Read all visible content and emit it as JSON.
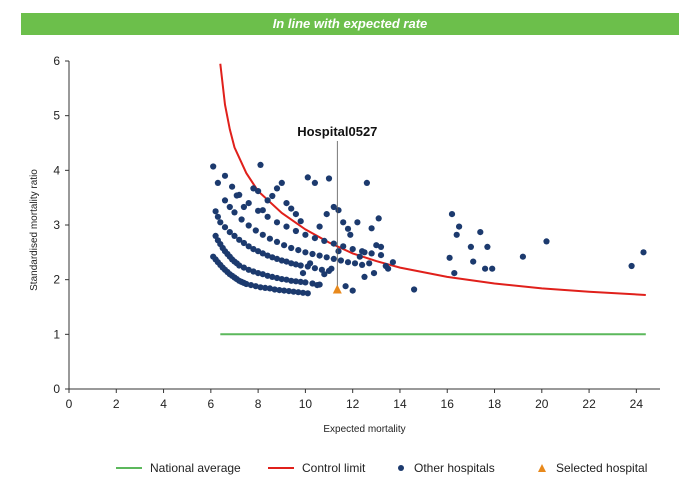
{
  "banner": {
    "text": "In line with expected rate"
  },
  "colors": {
    "banner": "#6cbf4b",
    "national": "#5cb85c",
    "control": "#e0201b",
    "hospitals": "#1c3a6e",
    "selected": "#e8891c"
  },
  "chart_data": {
    "type": "scatter",
    "xlabel": "Expected mortality",
    "ylabel": "Standardised mortality ratio",
    "xlim": [
      0,
      25
    ],
    "ylim": [
      0,
      6
    ],
    "xticks": [
      0,
      2,
      4,
      6,
      8,
      10,
      12,
      14,
      16,
      18,
      20,
      22,
      24
    ],
    "yticks": [
      0,
      1,
      2,
      3,
      4,
      5,
      6
    ],
    "grid": false,
    "legend_position": "bottom",
    "series": [
      {
        "name": "National average",
        "kind": "line",
        "points": [
          [
            6.4,
            1
          ],
          [
            24.4,
            1
          ]
        ]
      },
      {
        "name": "Control limit",
        "kind": "line",
        "points": [
          [
            6.4,
            5.95
          ],
          [
            6.6,
            5.2
          ],
          [
            6.8,
            4.75
          ],
          [
            7.0,
            4.42
          ],
          [
            7.5,
            3.95
          ],
          [
            8.0,
            3.62
          ],
          [
            9.0,
            3.22
          ],
          [
            10.0,
            2.92
          ],
          [
            11.0,
            2.68
          ],
          [
            12.0,
            2.48
          ],
          [
            13.0,
            2.34
          ],
          [
            14.0,
            2.22
          ],
          [
            16.0,
            2.05
          ],
          [
            18.0,
            1.93
          ],
          [
            20.0,
            1.84
          ],
          [
            22.0,
            1.78
          ],
          [
            24.4,
            1.72
          ]
        ]
      },
      {
        "name": "Other hospitals",
        "kind": "scatter",
        "points": [
          [
            6.1,
            2.42
          ],
          [
            6.2,
            2.37
          ],
          [
            6.3,
            2.32
          ],
          [
            6.4,
            2.27
          ],
          [
            6.5,
            2.22
          ],
          [
            6.6,
            2.18
          ],
          [
            6.7,
            2.14
          ],
          [
            6.8,
            2.1
          ],
          [
            6.9,
            2.07
          ],
          [
            7.0,
            2.04
          ],
          [
            7.1,
            2.01
          ],
          [
            7.2,
            1.98
          ],
          [
            7.3,
            1.96
          ],
          [
            7.4,
            1.94
          ],
          [
            7.5,
            1.92
          ],
          [
            7.7,
            1.9
          ],
          [
            7.9,
            1.88
          ],
          [
            8.1,
            1.86
          ],
          [
            8.3,
            1.85
          ],
          [
            8.5,
            1.84
          ],
          [
            8.7,
            1.82
          ],
          [
            8.9,
            1.81
          ],
          [
            9.1,
            1.8
          ],
          [
            9.3,
            1.79
          ],
          [
            9.5,
            1.78
          ],
          [
            9.7,
            1.77
          ],
          [
            9.9,
            1.76
          ],
          [
            10.1,
            1.75
          ],
          [
            6.2,
            2.8
          ],
          [
            6.3,
            2.72
          ],
          [
            6.4,
            2.65
          ],
          [
            6.5,
            2.58
          ],
          [
            6.6,
            2.52
          ],
          [
            6.7,
            2.47
          ],
          [
            6.8,
            2.42
          ],
          [
            6.9,
            2.37
          ],
          [
            7.0,
            2.33
          ],
          [
            7.1,
            2.3
          ],
          [
            7.2,
            2.26
          ],
          [
            7.4,
            2.22
          ],
          [
            7.6,
            2.18
          ],
          [
            7.8,
            2.15
          ],
          [
            8.0,
            2.12
          ],
          [
            8.2,
            2.1
          ],
          [
            8.4,
            2.07
          ],
          [
            8.6,
            2.05
          ],
          [
            8.8,
            2.03
          ],
          [
            9.0,
            2.01
          ],
          [
            9.2,
            2.0
          ],
          [
            9.4,
            1.98
          ],
          [
            9.6,
            1.97
          ],
          [
            9.8,
            1.96
          ],
          [
            10.0,
            1.95
          ],
          [
            10.3,
            1.93
          ],
          [
            10.6,
            1.91
          ],
          [
            6.2,
            3.25
          ],
          [
            6.3,
            3.15
          ],
          [
            6.4,
            3.05
          ],
          [
            6.6,
            2.96
          ],
          [
            6.8,
            2.87
          ],
          [
            7.0,
            2.8
          ],
          [
            7.2,
            2.73
          ],
          [
            7.4,
            2.67
          ],
          [
            7.6,
            2.61
          ],
          [
            7.8,
            2.56
          ],
          [
            8.0,
            2.52
          ],
          [
            8.2,
            2.48
          ],
          [
            8.4,
            2.44
          ],
          [
            8.6,
            2.41
          ],
          [
            8.8,
            2.38
          ],
          [
            9.0,
            2.35
          ],
          [
            9.2,
            2.33
          ],
          [
            9.4,
            2.3
          ],
          [
            9.6,
            2.28
          ],
          [
            9.8,
            2.26
          ],
          [
            10.1,
            2.24
          ],
          [
            10.4,
            2.21
          ],
          [
            10.7,
            2.18
          ],
          [
            11.0,
            2.16
          ],
          [
            6.6,
            3.45
          ],
          [
            6.8,
            3.33
          ],
          [
            7.0,
            3.23
          ],
          [
            7.3,
            3.1
          ],
          [
            7.6,
            2.99
          ],
          [
            7.9,
            2.9
          ],
          [
            8.2,
            2.82
          ],
          [
            8.5,
            2.75
          ],
          [
            8.8,
            2.69
          ],
          [
            9.1,
            2.63
          ],
          [
            9.4,
            2.58
          ],
          [
            9.7,
            2.54
          ],
          [
            10.0,
            2.5
          ],
          [
            10.3,
            2.47
          ],
          [
            10.6,
            2.44
          ],
          [
            10.9,
            2.41
          ],
          [
            11.2,
            2.38
          ],
          [
            11.5,
            2.35
          ],
          [
            11.8,
            2.32
          ],
          [
            12.1,
            2.3
          ],
          [
            12.4,
            2.27
          ],
          [
            7.2,
            3.55
          ],
          [
            7.6,
            3.4
          ],
          [
            8.0,
            3.26
          ],
          [
            8.4,
            3.15
          ],
          [
            8.8,
            3.05
          ],
          [
            9.2,
            2.97
          ],
          [
            9.6,
            2.89
          ],
          [
            10.0,
            2.82
          ],
          [
            10.4,
            2.76
          ],
          [
            10.8,
            2.71
          ],
          [
            11.2,
            2.66
          ],
          [
            11.6,
            2.61
          ],
          [
            12.0,
            2.56
          ],
          [
            12.4,
            2.52
          ],
          [
            12.8,
            2.48
          ],
          [
            6.1,
            4.07
          ],
          [
            6.3,
            3.77
          ],
          [
            6.6,
            3.9
          ],
          [
            6.9,
            3.7
          ],
          [
            7.1,
            3.54
          ],
          [
            7.4,
            3.33
          ],
          [
            7.8,
            3.67
          ],
          [
            8.0,
            3.62
          ],
          [
            8.1,
            4.1
          ],
          [
            8.2,
            3.27
          ],
          [
            8.4,
            3.45
          ],
          [
            8.6,
            3.53
          ],
          [
            8.8,
            3.67
          ],
          [
            9.0,
            3.77
          ],
          [
            9.2,
            3.4
          ],
          [
            9.4,
            3.3
          ],
          [
            9.6,
            3.2
          ],
          [
            9.8,
            3.07
          ],
          [
            10.1,
            3.87
          ],
          [
            10.4,
            3.77
          ],
          [
            10.6,
            2.97
          ],
          [
            10.9,
            3.2
          ],
          [
            11.0,
            3.85
          ],
          [
            11.2,
            3.33
          ],
          [
            11.4,
            3.27
          ],
          [
            11.6,
            3.05
          ],
          [
            11.8,
            2.93
          ],
          [
            11.9,
            2.82
          ],
          [
            12.2,
            3.05
          ],
          [
            12.5,
            2.5
          ],
          [
            12.6,
            3.77
          ],
          [
            12.8,
            2.94
          ],
          [
            13.0,
            2.63
          ],
          [
            13.1,
            3.12
          ],
          [
            13.2,
            2.6
          ],
          [
            13.4,
            2.25
          ],
          [
            13.7,
            2.32
          ],
          [
            14.6,
            1.82
          ],
          [
            11.7,
            1.88
          ],
          [
            12.0,
            1.8
          ],
          [
            12.5,
            2.05
          ],
          [
            12.9,
            2.12
          ],
          [
            13.2,
            2.45
          ],
          [
            13.5,
            2.2
          ],
          [
            12.3,
            2.42
          ],
          [
            12.7,
            2.3
          ],
          [
            11.4,
            2.52
          ],
          [
            11.1,
            2.2
          ],
          [
            10.8,
            2.1
          ],
          [
            10.5,
            1.9
          ],
          [
            10.2,
            2.3
          ],
          [
            9.9,
            2.12
          ],
          [
            16.1,
            2.4
          ],
          [
            16.2,
            3.2
          ],
          [
            16.3,
            2.12
          ],
          [
            16.4,
            2.82
          ],
          [
            16.5,
            2.97
          ],
          [
            17.0,
            2.6
          ],
          [
            17.1,
            2.33
          ],
          [
            17.4,
            2.87
          ],
          [
            17.6,
            2.2
          ],
          [
            17.7,
            2.6
          ],
          [
            17.9,
            2.2
          ],
          [
            19.2,
            2.42
          ],
          [
            20.2,
            2.7
          ],
          [
            23.8,
            2.25
          ],
          [
            24.3,
            2.5
          ]
        ]
      },
      {
        "name": "Selected hospital",
        "kind": "scatter",
        "points": [
          [
            11.35,
            1.82
          ]
        ]
      }
    ],
    "annotations": [
      {
        "text": "Hospital0527",
        "x": 11.35,
        "y": 1.82
      }
    ]
  },
  "legend": {
    "national": "National average",
    "control": "Control limit",
    "others": "Other hospitals",
    "selected": "Selected hospital"
  }
}
